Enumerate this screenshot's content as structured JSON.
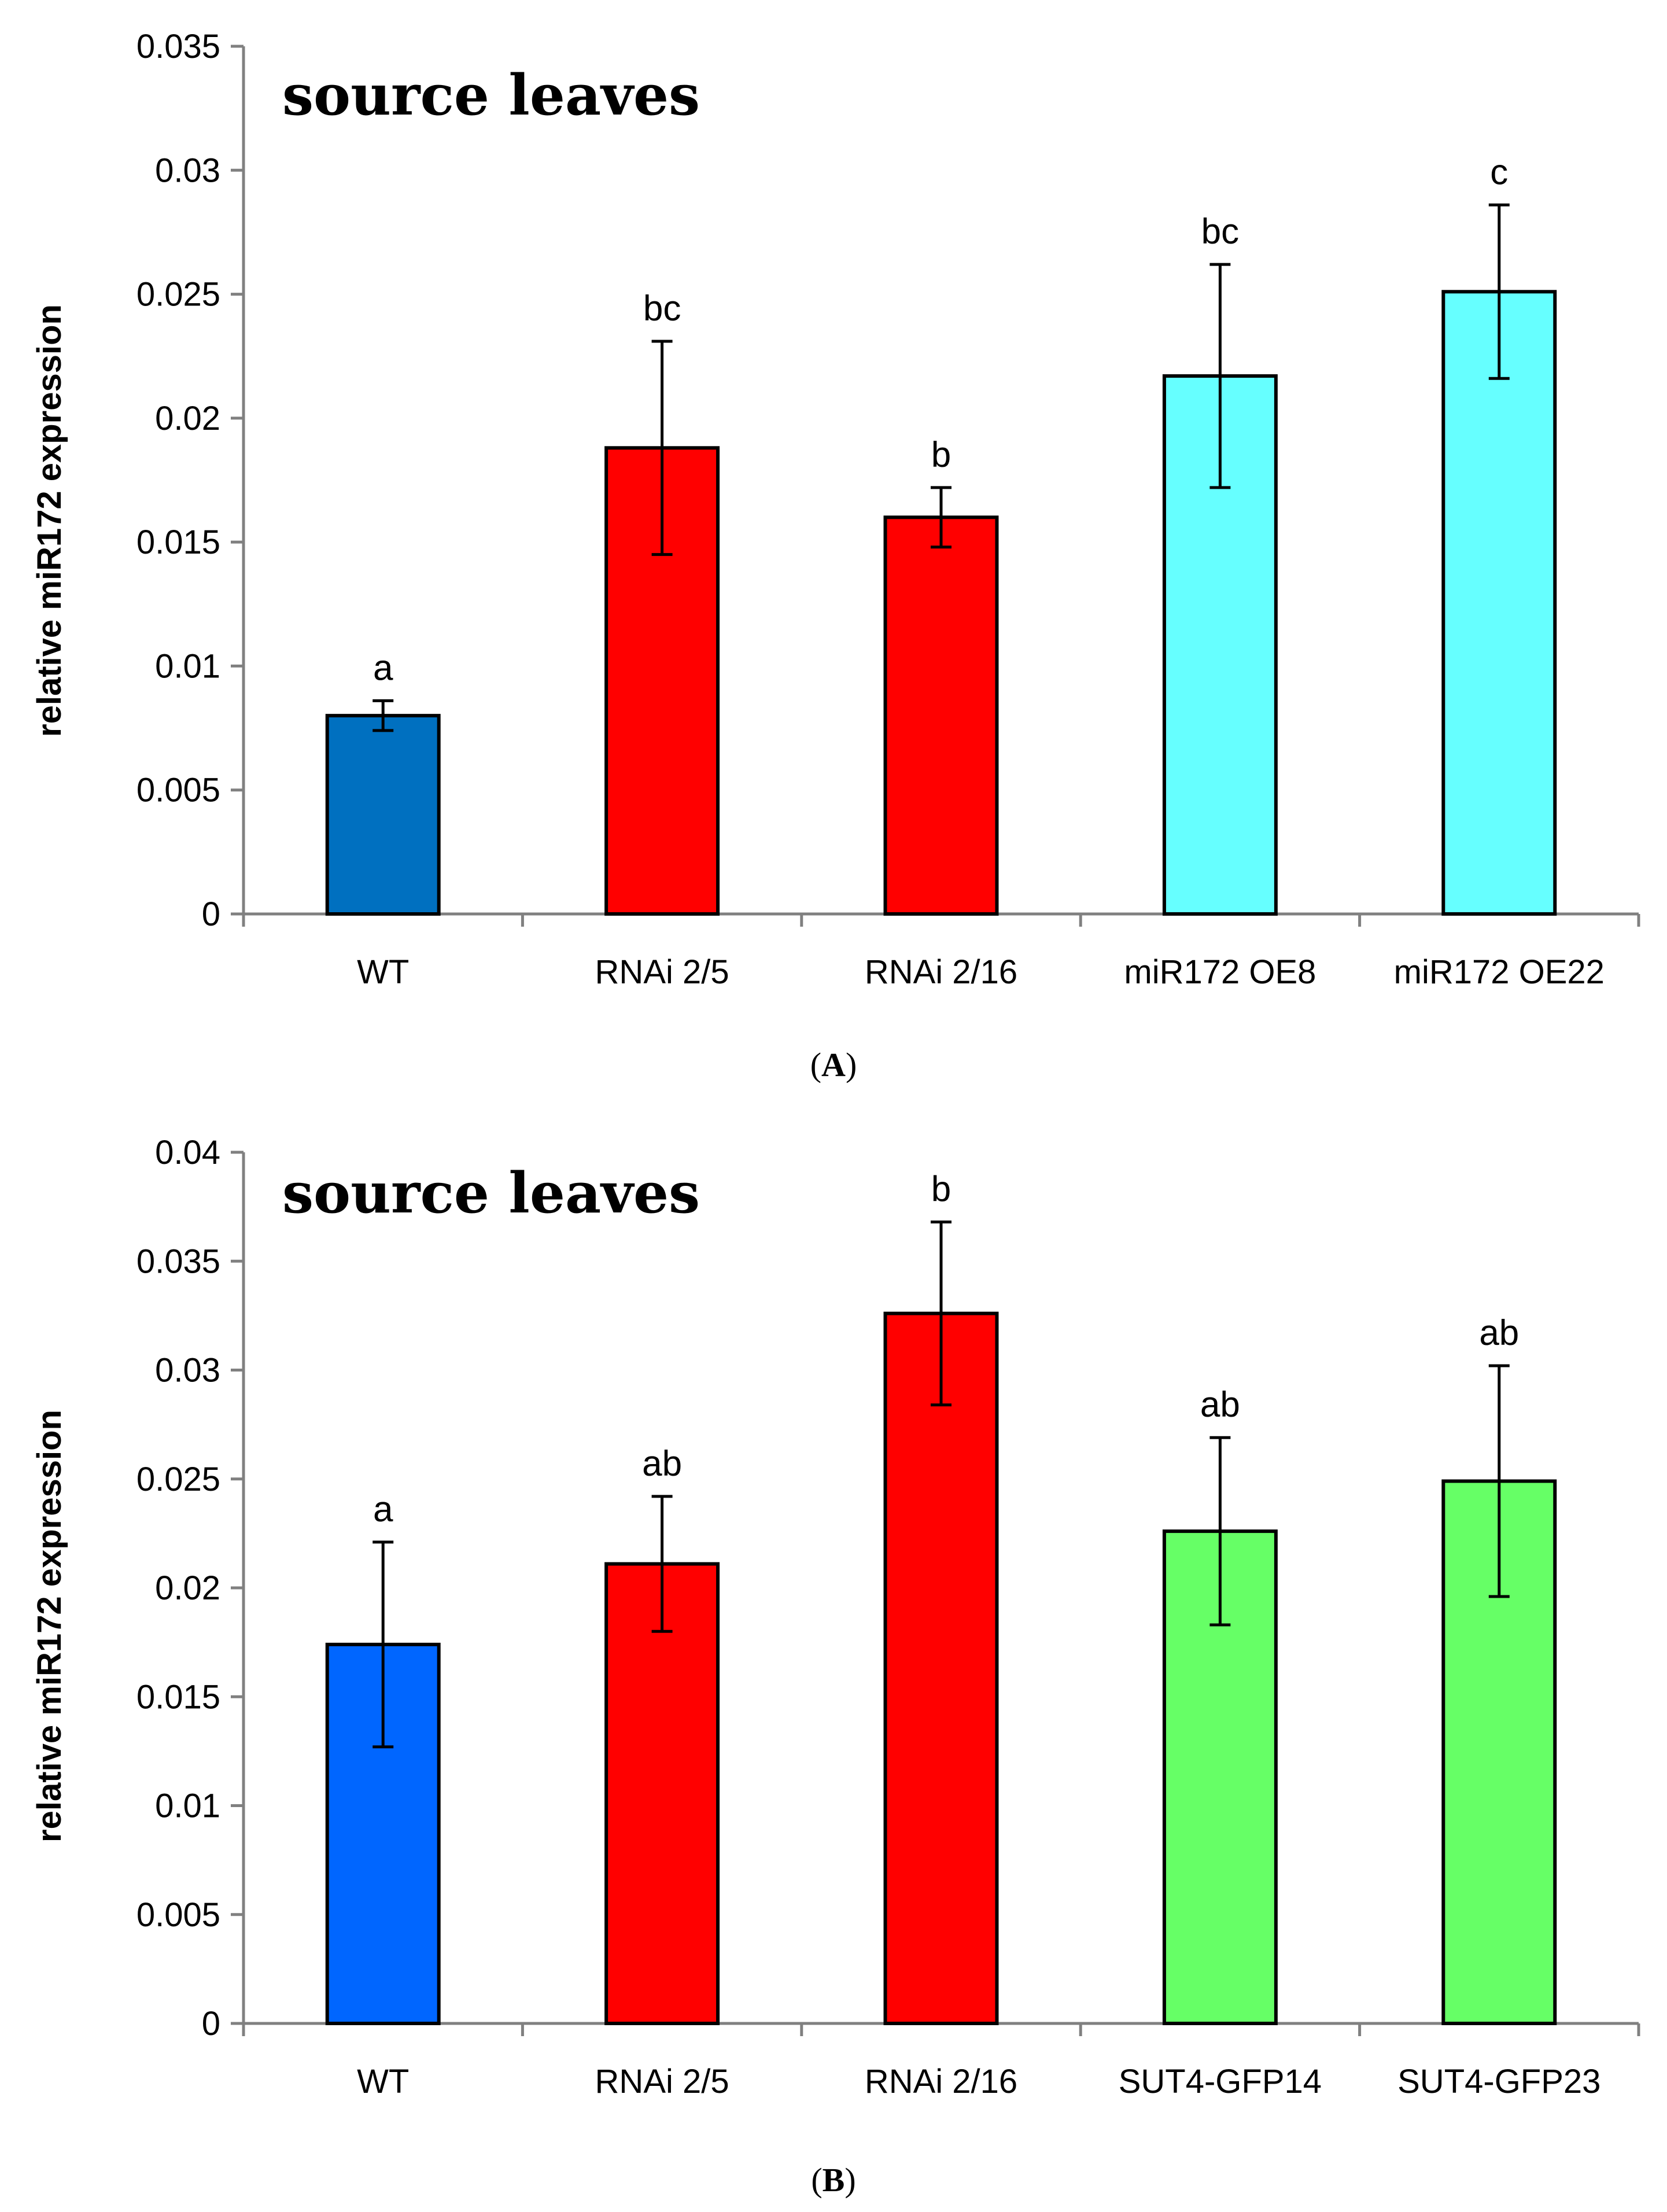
{
  "chart_data": [
    {
      "type": "bar",
      "panel_label": "A",
      "inset_title": "source leaves",
      "ylabel": "relative miR172 expression",
      "xlabel": "",
      "ylim": [
        0,
        0.035
      ],
      "yticks": [
        "0",
        "0.005",
        "0.01",
        "0.015",
        "0.02",
        "0.025",
        "0.03",
        "0.035"
      ],
      "categories": [
        "WT",
        "RNAi 2/5",
        "RNAi 2/16",
        "miR172 OE8",
        "miR172 OE22"
      ],
      "values": [
        0.008,
        0.0188,
        0.016,
        0.0217,
        0.0251
      ],
      "errors": [
        0.0006,
        0.0043,
        0.0012,
        0.0045,
        0.0035
      ],
      "significance": [
        "a",
        "bc",
        "b",
        "bc",
        "c"
      ],
      "colors": [
        "#0070c0",
        "#ff0000",
        "#ff0000",
        "#66ffff",
        "#66ffff"
      ],
      "grid": false
    },
    {
      "type": "bar",
      "panel_label": "B",
      "inset_title": "source leaves",
      "ylabel": "relative miR172 expression",
      "xlabel": "",
      "ylim": [
        0,
        0.04
      ],
      "yticks": [
        "0",
        "0.005",
        "0.01",
        "0.015",
        "0.02",
        "0.025",
        "0.03",
        "0.035",
        "0.04"
      ],
      "categories": [
        "WT",
        "RNAi 2/5",
        "RNAi 2/16",
        "SUT4-GFP14",
        "SUT4-GFP23"
      ],
      "values": [
        0.0174,
        0.0211,
        0.0326,
        0.0226,
        0.0249
      ],
      "errors": [
        0.0047,
        0.0031,
        0.0042,
        0.0043,
        0.0053
      ],
      "significance": [
        "a",
        "ab",
        "b",
        "ab",
        "ab"
      ],
      "colors": [
        "#0066ff",
        "#ff0000",
        "#ff0000",
        "#66ff66",
        "#66ff66"
      ],
      "grid": false
    }
  ]
}
